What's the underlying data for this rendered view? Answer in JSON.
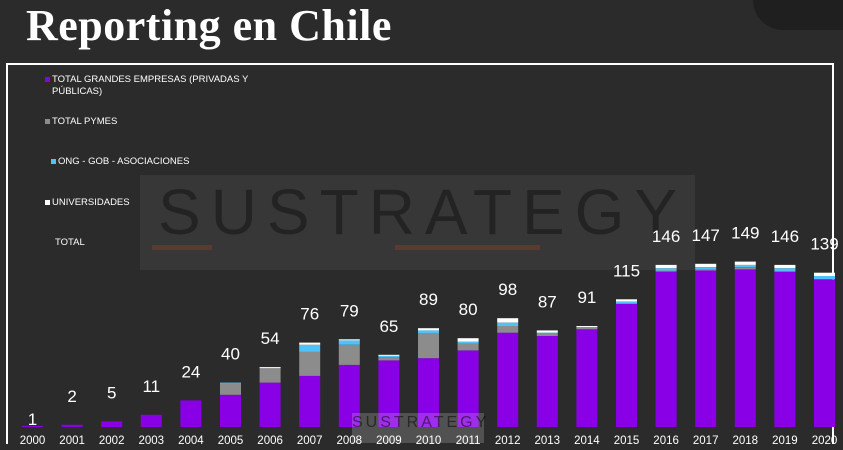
{
  "page": {
    "title": "Reporting en Chile"
  },
  "watermark": {
    "text": "SUSTRATEGY"
  },
  "chart_data": {
    "type": "bar",
    "stacked": true,
    "categories": [
      "2000",
      "2001",
      "2002",
      "2003",
      "2004",
      "2005",
      "2006",
      "2007",
      "2008",
      "2009",
      "2010",
      "2011",
      "2012",
      "2013",
      "2014",
      "2015",
      "2016",
      "2017",
      "2018",
      "2019",
      "2020"
    ],
    "series": [
      {
        "name": "TOTAL GRANDES EMPRESAS (PRIVADAS Y PÚBLICAS)",
        "color": "#8a00e6",
        "values": [
          1,
          2,
          5,
          11,
          24,
          29,
          40,
          46,
          56,
          60,
          62,
          69,
          85,
          82,
          88,
          111,
          140,
          141,
          142,
          140,
          133
        ]
      },
      {
        "name": "TOTAL PYMES",
        "color": "#8c8c8c",
        "values": [
          0,
          0,
          0,
          0,
          0,
          10,
          13,
          22,
          18,
          3,
          22,
          6,
          6,
          2,
          2,
          0,
          1,
          1,
          2,
          0,
          0
        ]
      },
      {
        "name": "ONG - GOB - ASOCIACIONES",
        "color": "#4fc3f7",
        "values": [
          0,
          0,
          0,
          0,
          0,
          1,
          0,
          6,
          4,
          1,
          3,
          2,
          3,
          1,
          0,
          2,
          2,
          2,
          2,
          3,
          3
        ]
      },
      {
        "name": "UNIVERSIDADES",
        "color": "#ffffff",
        "values": [
          0,
          0,
          0,
          0,
          0,
          0,
          1,
          2,
          1,
          1,
          2,
          3,
          4,
          2,
          1,
          2,
          3,
          3,
          3,
          3,
          3
        ]
      }
    ],
    "totals": [
      1,
      2,
      5,
      11,
      24,
      40,
      54,
      76,
      79,
      65,
      89,
      80,
      98,
      87,
      91,
      115,
      146,
      147,
      149,
      146,
      139
    ],
    "total_label": "TOTAL",
    "ylim": [
      0,
      230
    ],
    "grid": false,
    "legend_position": "top-left"
  }
}
